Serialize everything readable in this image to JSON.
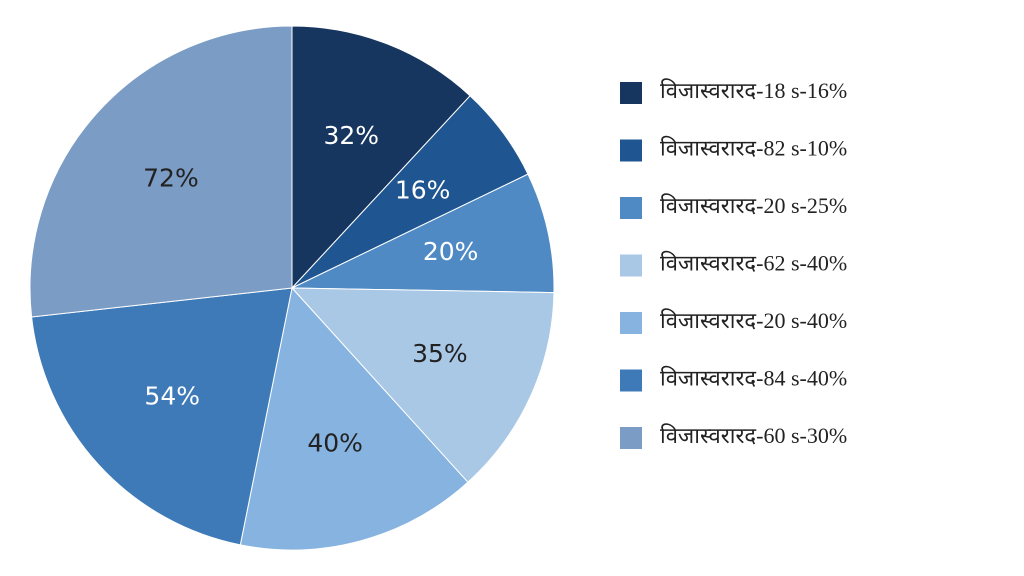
{
  "chart_data": {
    "type": "pie",
    "labels": [
      "विजास्वरारद-18 s-16%",
      "विजास्वरारद-82 s-10%",
      "विजास्वरारद-20 s-25%",
      "विजास्वरारद-62 s-40%",
      "विजास्वरारद-20 s-40%",
      "विजास्वरारद-84 s-40%",
      "विजास्वरारद-60 s-30%"
    ],
    "values": [
      32,
      16,
      20,
      35,
      40,
      54,
      72
    ],
    "value_labels": [
      "32%",
      "16%",
      "20%",
      "35%",
      "40%",
      "54%",
      "72%"
    ],
    "colors": [
      "#16365f",
      "#1f5590",
      "#4f8ac4",
      "#a9c8e6",
      "#86b3df",
      "#3f7ab8",
      "#7b9cc4"
    ]
  }
}
